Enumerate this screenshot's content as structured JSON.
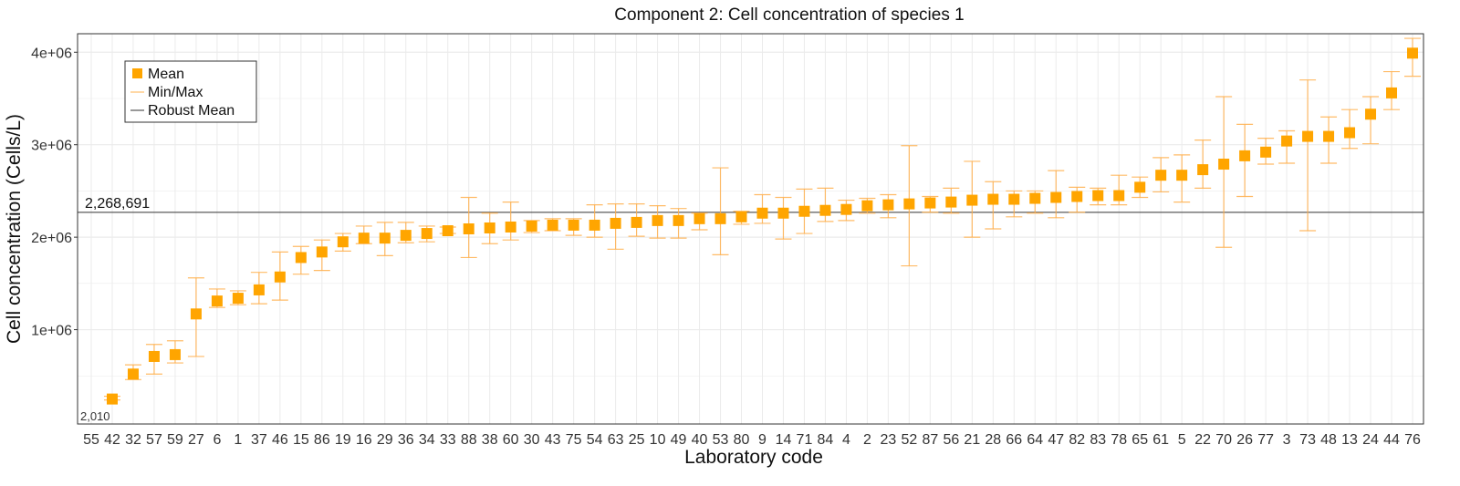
{
  "chart_data": {
    "type": "scatter",
    "title": "Component 2: Cell concentration of species 1",
    "xlabel": "Laboratory code",
    "ylabel": "Cell concentration (Cells/L)",
    "ylim": [
      -20000,
      4200000
    ],
    "yticks": [
      1000000,
      2000000,
      3000000,
      4000000
    ],
    "ytick_labels": [
      "1e+06",
      "2e+06",
      "3e+06",
      "4e+06"
    ],
    "grid": true,
    "legend": {
      "placement": "top-left",
      "entries": [
        "Mean",
        "Min/Max",
        "Robust Mean"
      ]
    },
    "robust_mean": 2268691,
    "robust_mean_label": "2,268,691",
    "min_label": "2,010",
    "colors": {
      "mean": "#FFA500",
      "minmax": "#FFB04D",
      "robust": "#333333",
      "grid": "#EBEBEB"
    },
    "categories": [
      "55",
      "42",
      "32",
      "57",
      "59",
      "27",
      "6",
      "1",
      "37",
      "46",
      "15",
      "86",
      "19",
      "16",
      "29",
      "36",
      "34",
      "33",
      "88",
      "38",
      "60",
      "30",
      "43",
      "75",
      "54",
      "63",
      "25",
      "10",
      "49",
      "40",
      "53",
      "80",
      "9",
      "14",
      "71",
      "84",
      "4",
      "2",
      "23",
      "52",
      "87",
      "56",
      "21",
      "28",
      "66",
      "64",
      "47",
      "82",
      "83",
      "78",
      "65",
      "61",
      "5",
      "22",
      "70",
      "26",
      "77",
      "3",
      "73",
      "48",
      "13",
      "24",
      "44",
      "76"
    ],
    "mean": [
      2010,
      250000,
      520000,
      710000,
      730000,
      1170000,
      1310000,
      1340000,
      1430000,
      1570000,
      1780000,
      1840000,
      1950000,
      1990000,
      1990000,
      2020000,
      2040000,
      2070000,
      2090000,
      2100000,
      2110000,
      2120000,
      2130000,
      2130000,
      2130000,
      2150000,
      2160000,
      2180000,
      2180000,
      2200000,
      2200000,
      2220000,
      2260000,
      2260000,
      2280000,
      2290000,
      2300000,
      2340000,
      2350000,
      2360000,
      2370000,
      2380000,
      2400000,
      2410000,
      2410000,
      2420000,
      2430000,
      2440000,
      2450000,
      2450000,
      2540000,
      2670000,
      2670000,
      2730000,
      2790000,
      2880000,
      2920000,
      3040000,
      3090000,
      3090000,
      3130000,
      3330000,
      3560000,
      3990000
    ],
    "min": [
      2010,
      240000,
      460000,
      520000,
      640000,
      710000,
      1240000,
      1270000,
      1280000,
      1320000,
      1600000,
      1640000,
      1850000,
      1930000,
      1800000,
      1940000,
      1950000,
      2040000,
      1780000,
      1930000,
      1970000,
      2050000,
      2070000,
      2020000,
      2000000,
      1870000,
      2010000,
      1990000,
      1990000,
      2080000,
      1810000,
      2140000,
      2150000,
      1980000,
      2040000,
      2170000,
      2180000,
      2260000,
      2210000,
      1690000,
      2270000,
      2260000,
      2000000,
      2090000,
      2220000,
      2260000,
      2210000,
      2270000,
      2350000,
      2350000,
      2430000,
      2490000,
      2380000,
      2530000,
      1890000,
      2440000,
      2790000,
      2800000,
      2070000,
      2800000,
      2960000,
      3010000,
      3380000,
      3740000
    ],
    "max": [
      2010,
      280000,
      620000,
      840000,
      880000,
      1560000,
      1440000,
      1420000,
      1620000,
      1840000,
      1900000,
      1970000,
      2040000,
      2120000,
      2160000,
      2160000,
      2120000,
      2110000,
      2430000,
      2260000,
      2380000,
      2180000,
      2200000,
      2200000,
      2350000,
      2360000,
      2360000,
      2340000,
      2310000,
      2260000,
      2750000,
      2280000,
      2460000,
      2430000,
      2520000,
      2530000,
      2400000,
      2420000,
      2460000,
      2990000,
      2440000,
      2530000,
      2820000,
      2600000,
      2500000,
      2500000,
      2720000,
      2540000,
      2530000,
      2670000,
      2650000,
      2860000,
      2890000,
      3050000,
      3520000,
      3220000,
      3070000,
      3150000,
      3700000,
      3300000,
      3380000,
      3520000,
      3790000,
      4150000
    ]
  }
}
